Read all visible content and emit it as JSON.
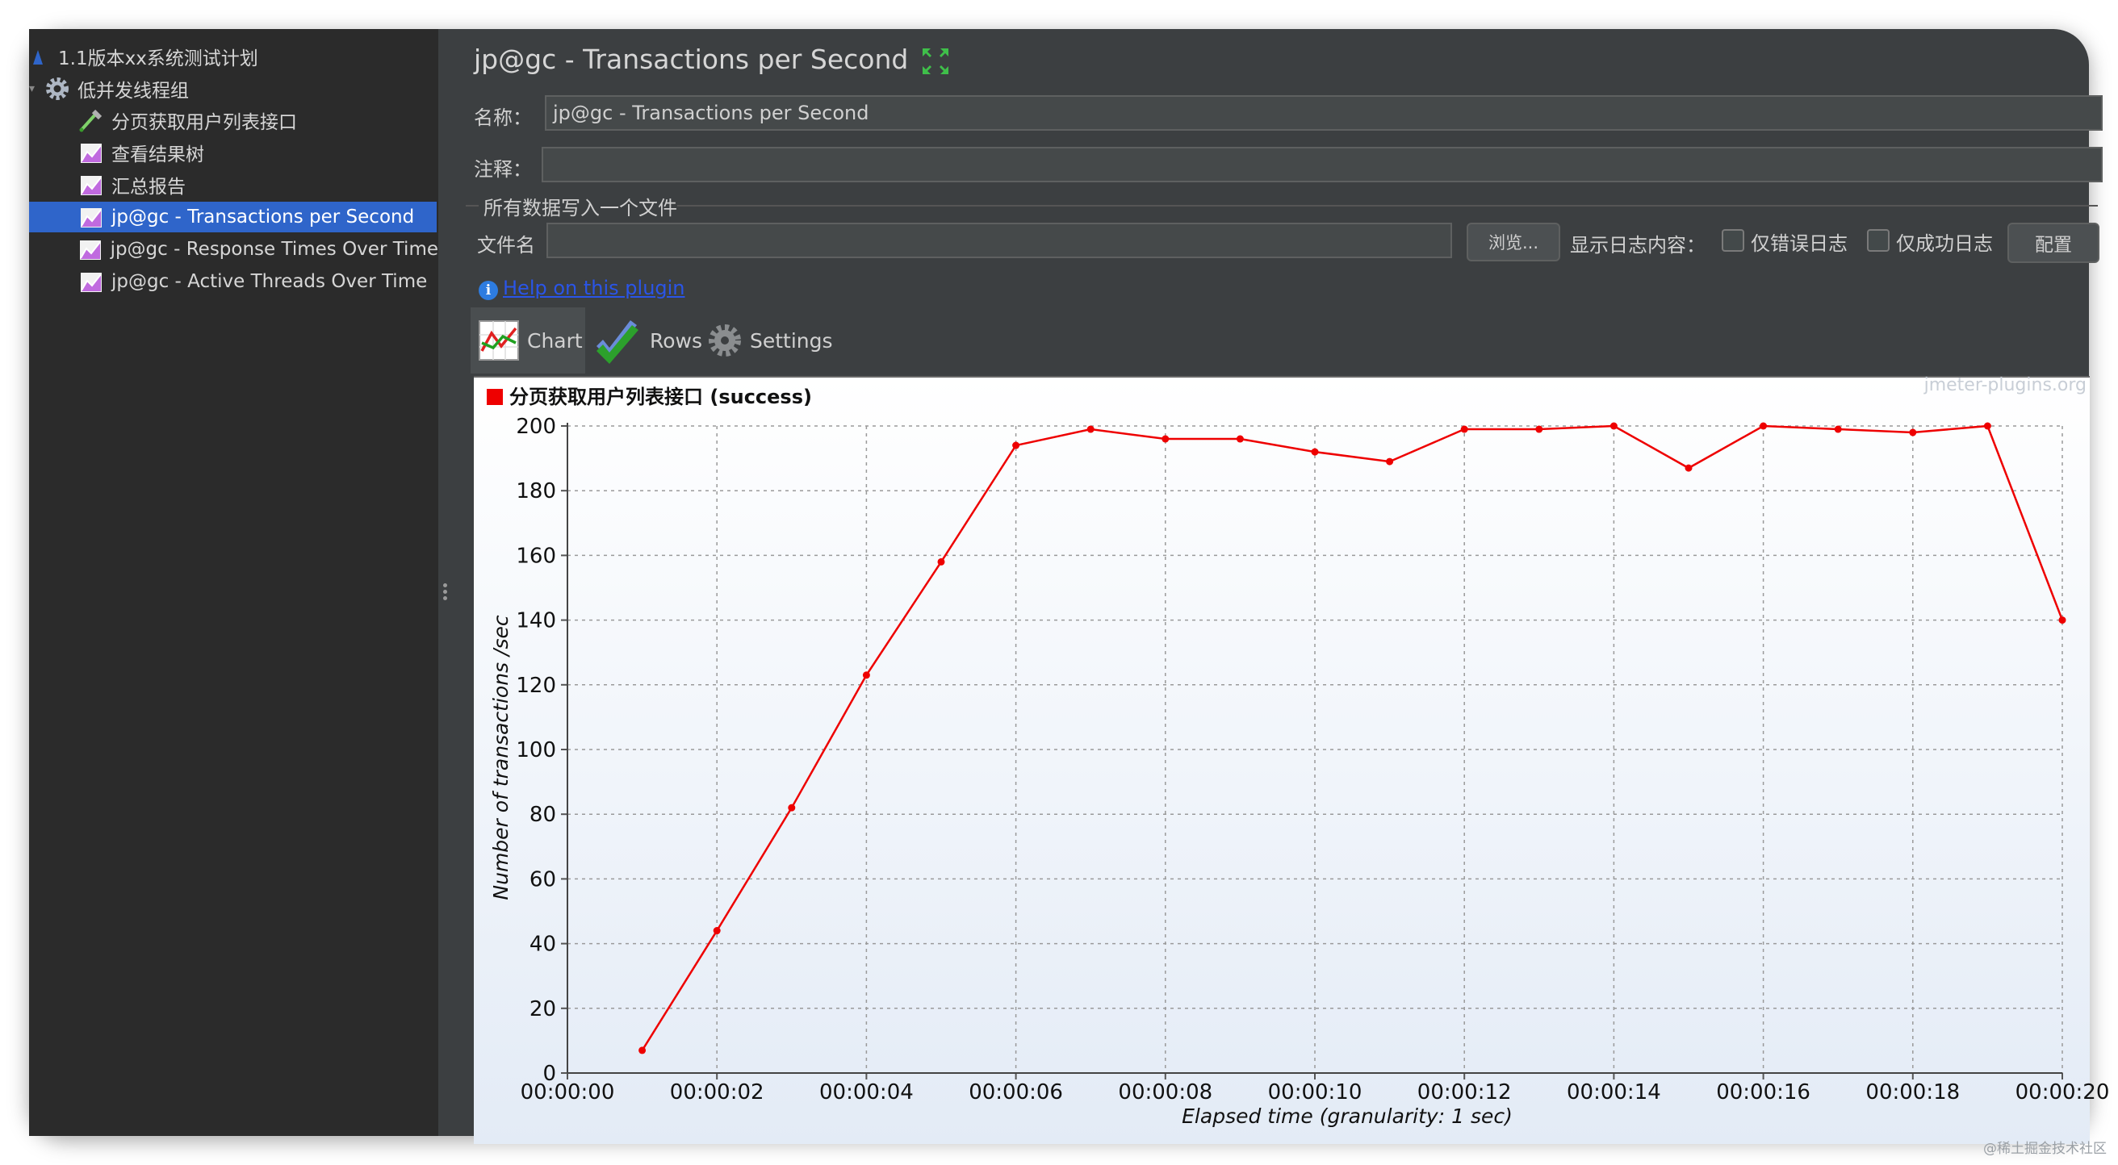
{
  "tree": {
    "items": [
      {
        "label": "1.1版本xx系统测试计划",
        "icon": "test-plan-icon"
      },
      {
        "label": "低并发线程组",
        "icon": "thread-group-gear-icon"
      },
      {
        "label": "分页获取用户列表接口",
        "icon": "http-sampler-pipette-icon"
      },
      {
        "label": "查看结果树",
        "icon": "listener-chart-icon"
      },
      {
        "label": "汇总报告",
        "icon": "listener-chart-icon"
      },
      {
        "label": "jp@gc - Transactions per Second",
        "icon": "listener-chart-icon",
        "selected": true
      },
      {
        "label": "jp@gc - Response Times Over Time",
        "icon": "listener-chart-icon"
      },
      {
        "label": "jp@gc - Active Threads Over Time",
        "icon": "listener-chart-icon"
      }
    ]
  },
  "panel": {
    "title": "jp@gc - Transactions per Second",
    "expand_icon": "expand-arrows-icon",
    "name_label": "名称：",
    "name_value": "jp@gc - Transactions per Second",
    "comment_label": "注释：",
    "comment_value": "",
    "file_section_label": "所有数据写入一个文件",
    "filename_label": "文件名",
    "filename_value": "",
    "browse_label": "浏览...",
    "log_display_label": "显示日志内容：",
    "errors_only_label": "仅错误日志",
    "success_only_label": "仅成功日志",
    "configure_label": "配置",
    "help_link": "Help on this plugin",
    "tabs": [
      {
        "label": "Chart",
        "icon": "chart-icon",
        "active": true
      },
      {
        "label": "Rows",
        "icon": "checkmark-icon"
      },
      {
        "label": "Settings",
        "icon": "gear-icon"
      }
    ]
  },
  "chart_data": {
    "type": "line",
    "watermark": "jmeter-plugins.org",
    "xlabel": "Elapsed time (granularity: 1 sec)",
    "ylabel": "Number of transactions /sec",
    "ylim": [
      0,
      200
    ],
    "yticks": [
      0,
      20,
      40,
      60,
      80,
      100,
      120,
      140,
      160,
      180,
      200
    ],
    "xlim_seconds": [
      0,
      20
    ],
    "xtick_labels": [
      "00:00:00",
      "00:00:02",
      "00:00:04",
      "00:00:06",
      "00:00:08",
      "00:00:10",
      "00:00:12",
      "00:00:14",
      "00:00:16",
      "00:00:18",
      "00:00:20"
    ],
    "grid": true,
    "legend_position": "top-left",
    "series": [
      {
        "name": "分页获取用户列表接口 (success)",
        "color": "#ee0000",
        "x": [
          "00:00:01",
          "00:00:02",
          "00:00:03",
          "00:00:04",
          "00:00:05",
          "00:00:06",
          "00:00:07",
          "00:00:08",
          "00:00:09",
          "00:00:10",
          "00:00:11",
          "00:00:12",
          "00:00:13",
          "00:00:14",
          "00:00:15",
          "00:00:16",
          "00:00:17",
          "00:00:18",
          "00:00:19",
          "00:00:20"
        ],
        "values": [
          7,
          44,
          82,
          123,
          158,
          194,
          199,
          196,
          196,
          192,
          189,
          199,
          199,
          200,
          187,
          200,
          199,
          198,
          200,
          140
        ]
      }
    ]
  },
  "watermark_text": "@稀土掘金技术社区"
}
